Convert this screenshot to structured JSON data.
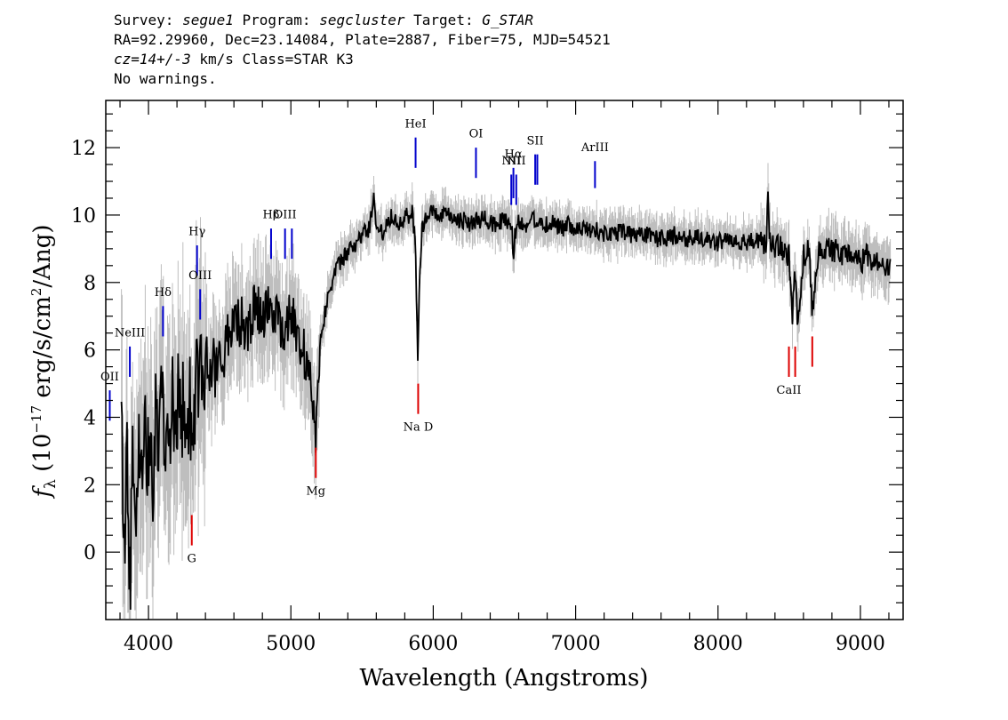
{
  "header": {
    "line1": {
      "survey_label": "Survey: ",
      "survey": "segue1",
      "program_label": " Program: ",
      "program": "segcluster",
      "target_label": " Target: ",
      "target": "G_STAR"
    },
    "line2": "RA=92.29960, Dec=23.14084, Plate=2887, Fiber=75, MJD=54521",
    "line3": {
      "cz": "cz=14+/-3",
      "rest": " km/s Class=STAR K3"
    },
    "line4": "No warnings."
  },
  "chart_data": {
    "type": "line",
    "xlabel": "Wavelength (Angstroms)",
    "ylabel": "f_λ (10^-17 erg/s/cm^2/Ang)",
    "ylabel_parts": {
      "f": "f",
      "sub": "λ",
      "open": " (10",
      "exp": "−17",
      "mid": " erg/s/cm",
      "exp2": "2",
      "close": "/Ang)"
    },
    "xlim": [
      3700,
      9300
    ],
    "ylim": [
      -2,
      13.4
    ],
    "xticks": [
      "4000",
      "5000",
      "6000",
      "7000",
      "8000",
      "9000"
    ],
    "xtick_values": [
      4000,
      5000,
      6000,
      7000,
      8000,
      9000
    ],
    "yticks": [
      "0",
      "2",
      "4",
      "6",
      "8",
      "10",
      "12"
    ],
    "ytick_values": [
      0,
      2,
      4,
      6,
      8,
      10,
      12
    ],
    "x_minor_step": 200,
    "y_minor_step": 0.5,
    "spectrum_x_range": [
      3810,
      9210
    ],
    "series": [
      {
        "role": "spectrum",
        "color": "#000000",
        "x": [
          3810,
          3830,
          3850,
          3870,
          3890,
          3910,
          3930,
          3950,
          3970,
          3990,
          4010,
          4030,
          4050,
          4070,
          4090,
          4110,
          4130,
          4150,
          4170,
          4190,
          4210,
          4230,
          4250,
          4270,
          4290,
          4310,
          4330,
          4350,
          4370,
          4390,
          4410,
          4430,
          4450,
          4470,
          4490,
          4510,
          4550,
          4600,
          4650,
          4700,
          4750,
          4800,
          4850,
          4900,
          4950,
          5000,
          5050,
          5100,
          5140,
          5160,
          5175,
          5185,
          5200,
          5230,
          5260,
          5300,
          5350,
          5400,
          5450,
          5500,
          5550,
          5580,
          5600,
          5650,
          5700,
          5750,
          5800,
          5850,
          5875,
          5885,
          5892,
          5900,
          5920,
          5950,
          6000,
          6050,
          6100,
          6150,
          6200,
          6250,
          6300,
          6350,
          6400,
          6450,
          6500,
          6550,
          6563,
          6580,
          6600,
          6650,
          6700,
          6750,
          6800,
          6850,
          6900,
          6950,
          7000,
          7050,
          7100,
          7150,
          7200,
          7300,
          7400,
          7500,
          7600,
          7700,
          7800,
          7900,
          8000,
          8100,
          8200,
          8300,
          8340,
          8350,
          8360,
          8400,
          8450,
          8498,
          8520,
          8542,
          8560,
          8600,
          8640,
          8662,
          8700,
          8750,
          8800,
          8850,
          8900,
          8950,
          9000,
          9050,
          9100,
          9150,
          9200,
          9210
        ],
        "y": [
          3.7,
          0.3,
          2.9,
          -1.5,
          3.0,
          0.8,
          3.6,
          2.1,
          4.1,
          2.5,
          3.4,
          2.2,
          3.9,
          2.6,
          4.4,
          3.3,
          4.0,
          3.1,
          4.5,
          3.5,
          5.1,
          3.4,
          5.0,
          3.6,
          4.8,
          2.2,
          5.3,
          4.4,
          5.6,
          4.7,
          5.8,
          5.0,
          5.9,
          5.2,
          6.1,
          5.5,
          6.3,
          6.6,
          6.9,
          6.5,
          7.3,
          7.0,
          7.4,
          6.9,
          6.7,
          7.0,
          6.5,
          5.8,
          4.9,
          4.3,
          3.4,
          4.9,
          6.0,
          6.9,
          7.6,
          8.2,
          8.6,
          8.9,
          9.1,
          9.4,
          9.6,
          10.5,
          9.7,
          9.5,
          10.0,
          9.8,
          9.9,
          10.1,
          9.2,
          7.0,
          5.4,
          7.8,
          9.6,
          9.9,
          10.1,
          9.9,
          10.0,
          9.8,
          9.9,
          9.7,
          9.8,
          9.9,
          9.8,
          9.7,
          9.9,
          9.6,
          8.9,
          9.6,
          9.8,
          9.7,
          9.9,
          9.8,
          9.7,
          9.8,
          9.6,
          9.7,
          9.5,
          9.6,
          9.5,
          9.6,
          9.4,
          9.5,
          9.4,
          9.4,
          9.3,
          9.4,
          9.3,
          9.3,
          9.2,
          9.3,
          9.2,
          9.2,
          9.1,
          10.5,
          9.2,
          9.1,
          9.0,
          8.8,
          6.9,
          8.4,
          6.6,
          8.8,
          9.0,
          7.2,
          8.8,
          9.0,
          8.9,
          9.0,
          8.7,
          8.9,
          8.6,
          8.8,
          8.5,
          8.6,
          8.4,
          9.0
        ]
      },
      {
        "role": "error",
        "color": "#bebebe"
      }
    ],
    "emission_lines": [
      {
        "label": "OII",
        "x": 3728,
        "y0": 3.9,
        "y1": 4.8,
        "label_y": 5.1
      },
      {
        "label": "NeIII",
        "x": 3869,
        "y0": 5.2,
        "y1": 6.1,
        "label_y": 6.4
      },
      {
        "label": "Hδ",
        "x": 4102,
        "y0": 6.4,
        "y1": 7.3,
        "label_y": 7.6
      },
      {
        "label": "Hγ",
        "x": 4341,
        "y0": 8.2,
        "y1": 9.1,
        "label_y": 9.4
      },
      {
        "label": "OIII",
        "x": 4363,
        "y0": 6.9,
        "y1": 7.8,
        "label_y": 8.1
      },
      {
        "label": "Hβ",
        "x": 4861,
        "y0": 8.7,
        "y1": 9.6,
        "label_y": 9.9
      },
      {
        "label": "OIII",
        "x": 4959,
        "y0": 8.7,
        "y1": 9.6,
        "label_y": 9.9
      },
      {
        "label": "",
        "x": 5007,
        "y0": 8.7,
        "y1": 9.6,
        "label_y": 9.9
      },
      {
        "label": "HeI",
        "x": 5876,
        "y0": 11.4,
        "y1": 12.3,
        "label_y": 12.6
      },
      {
        "label": "OI",
        "x": 6300,
        "y0": 11.1,
        "y1": 12.0,
        "label_y": 12.3
      },
      {
        "label": "NII",
        "x": 6548,
        "y0": 10.3,
        "y1": 11.2,
        "label_y": 11.5
      },
      {
        "label": "Hα",
        "x": 6563,
        "y0": 10.5,
        "y1": 11.4,
        "label_y": 11.7
      },
      {
        "label": "NII",
        "x": 6583,
        "y0": 10.3,
        "y1": 11.2,
        "label_y": 11.5
      },
      {
        "label": "SII",
        "x": 6716,
        "y0": 10.9,
        "y1": 11.8,
        "label_y": 12.1
      },
      {
        "label": "",
        "x": 6731,
        "y0": 10.9,
        "y1": 11.8,
        "label_y": 12.1
      },
      {
        "label": "ArIII",
        "x": 7136,
        "y0": 10.8,
        "y1": 11.6,
        "label_y": 11.9
      }
    ],
    "absorption_lines": [
      {
        "label": "G",
        "x": 4304,
        "y0": 0.2,
        "y1": 1.1,
        "label_y": -0.3
      },
      {
        "label": "Mg",
        "x": 5175,
        "y0": 2.2,
        "y1": 3.1,
        "label_y": 1.7
      },
      {
        "label": "Na D",
        "x": 5894,
        "y0": 4.1,
        "y1": 5.0,
        "label_y": 3.6
      },
      {
        "label": "CaII",
        "x": 8498,
        "y0": 5.2,
        "y1": 6.1,
        "label_y": 4.7
      },
      {
        "label": "",
        "x": 8542,
        "y0": 5.2,
        "y1": 6.1,
        "label_y": 4.7
      },
      {
        "label": "",
        "x": 8662,
        "y0": 5.5,
        "y1": 6.4,
        "label_y": 5.0
      }
    ],
    "emission_color": "#0000cc",
    "absorption_color": "#dd0000",
    "grid": false,
    "legend": "none"
  }
}
